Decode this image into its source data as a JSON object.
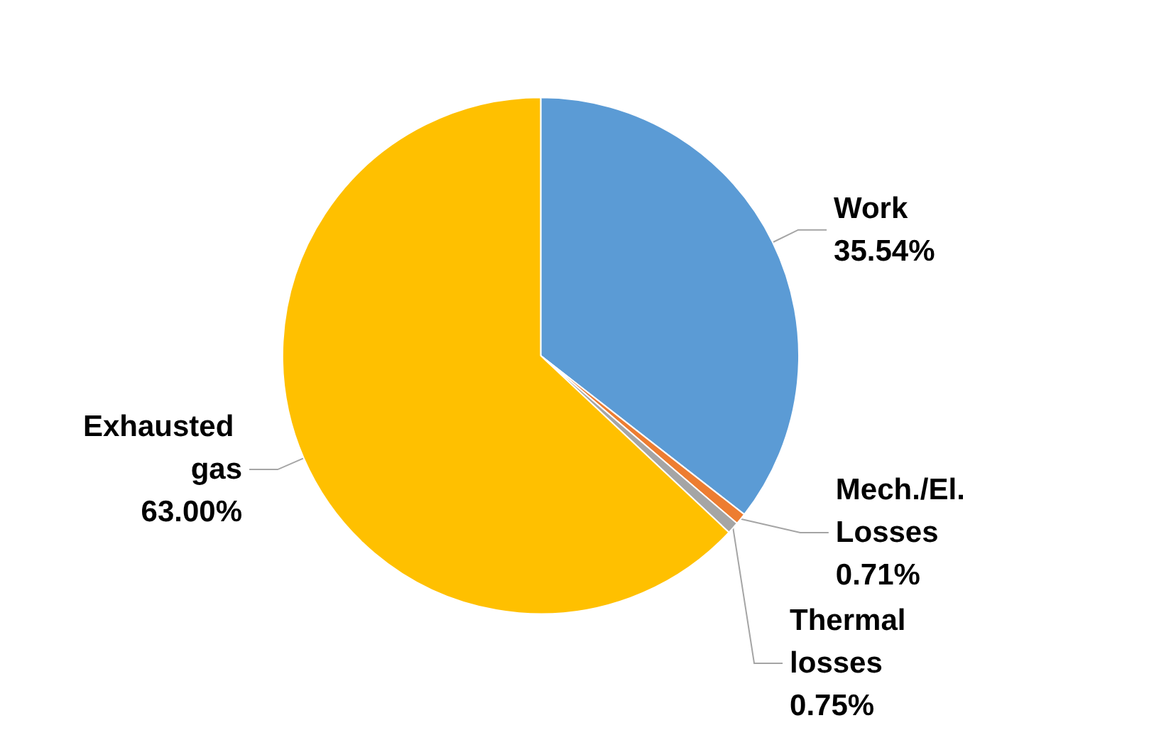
{
  "chart_data": {
    "type": "pie",
    "categories": [
      "Work",
      "Mech./El. Losses",
      "Thermal losses",
      "Exhausted gas"
    ],
    "values": [
      35.54,
      0.71,
      0.75,
      63.0
    ],
    "value_labels": [
      "35.54%",
      "0.71%",
      "0.75%",
      "63.00%"
    ],
    "colors": [
      "#5b9bd5",
      "#ed7d31",
      "#a5a5a5",
      "#ffc000"
    ],
    "legend": false
  }
}
